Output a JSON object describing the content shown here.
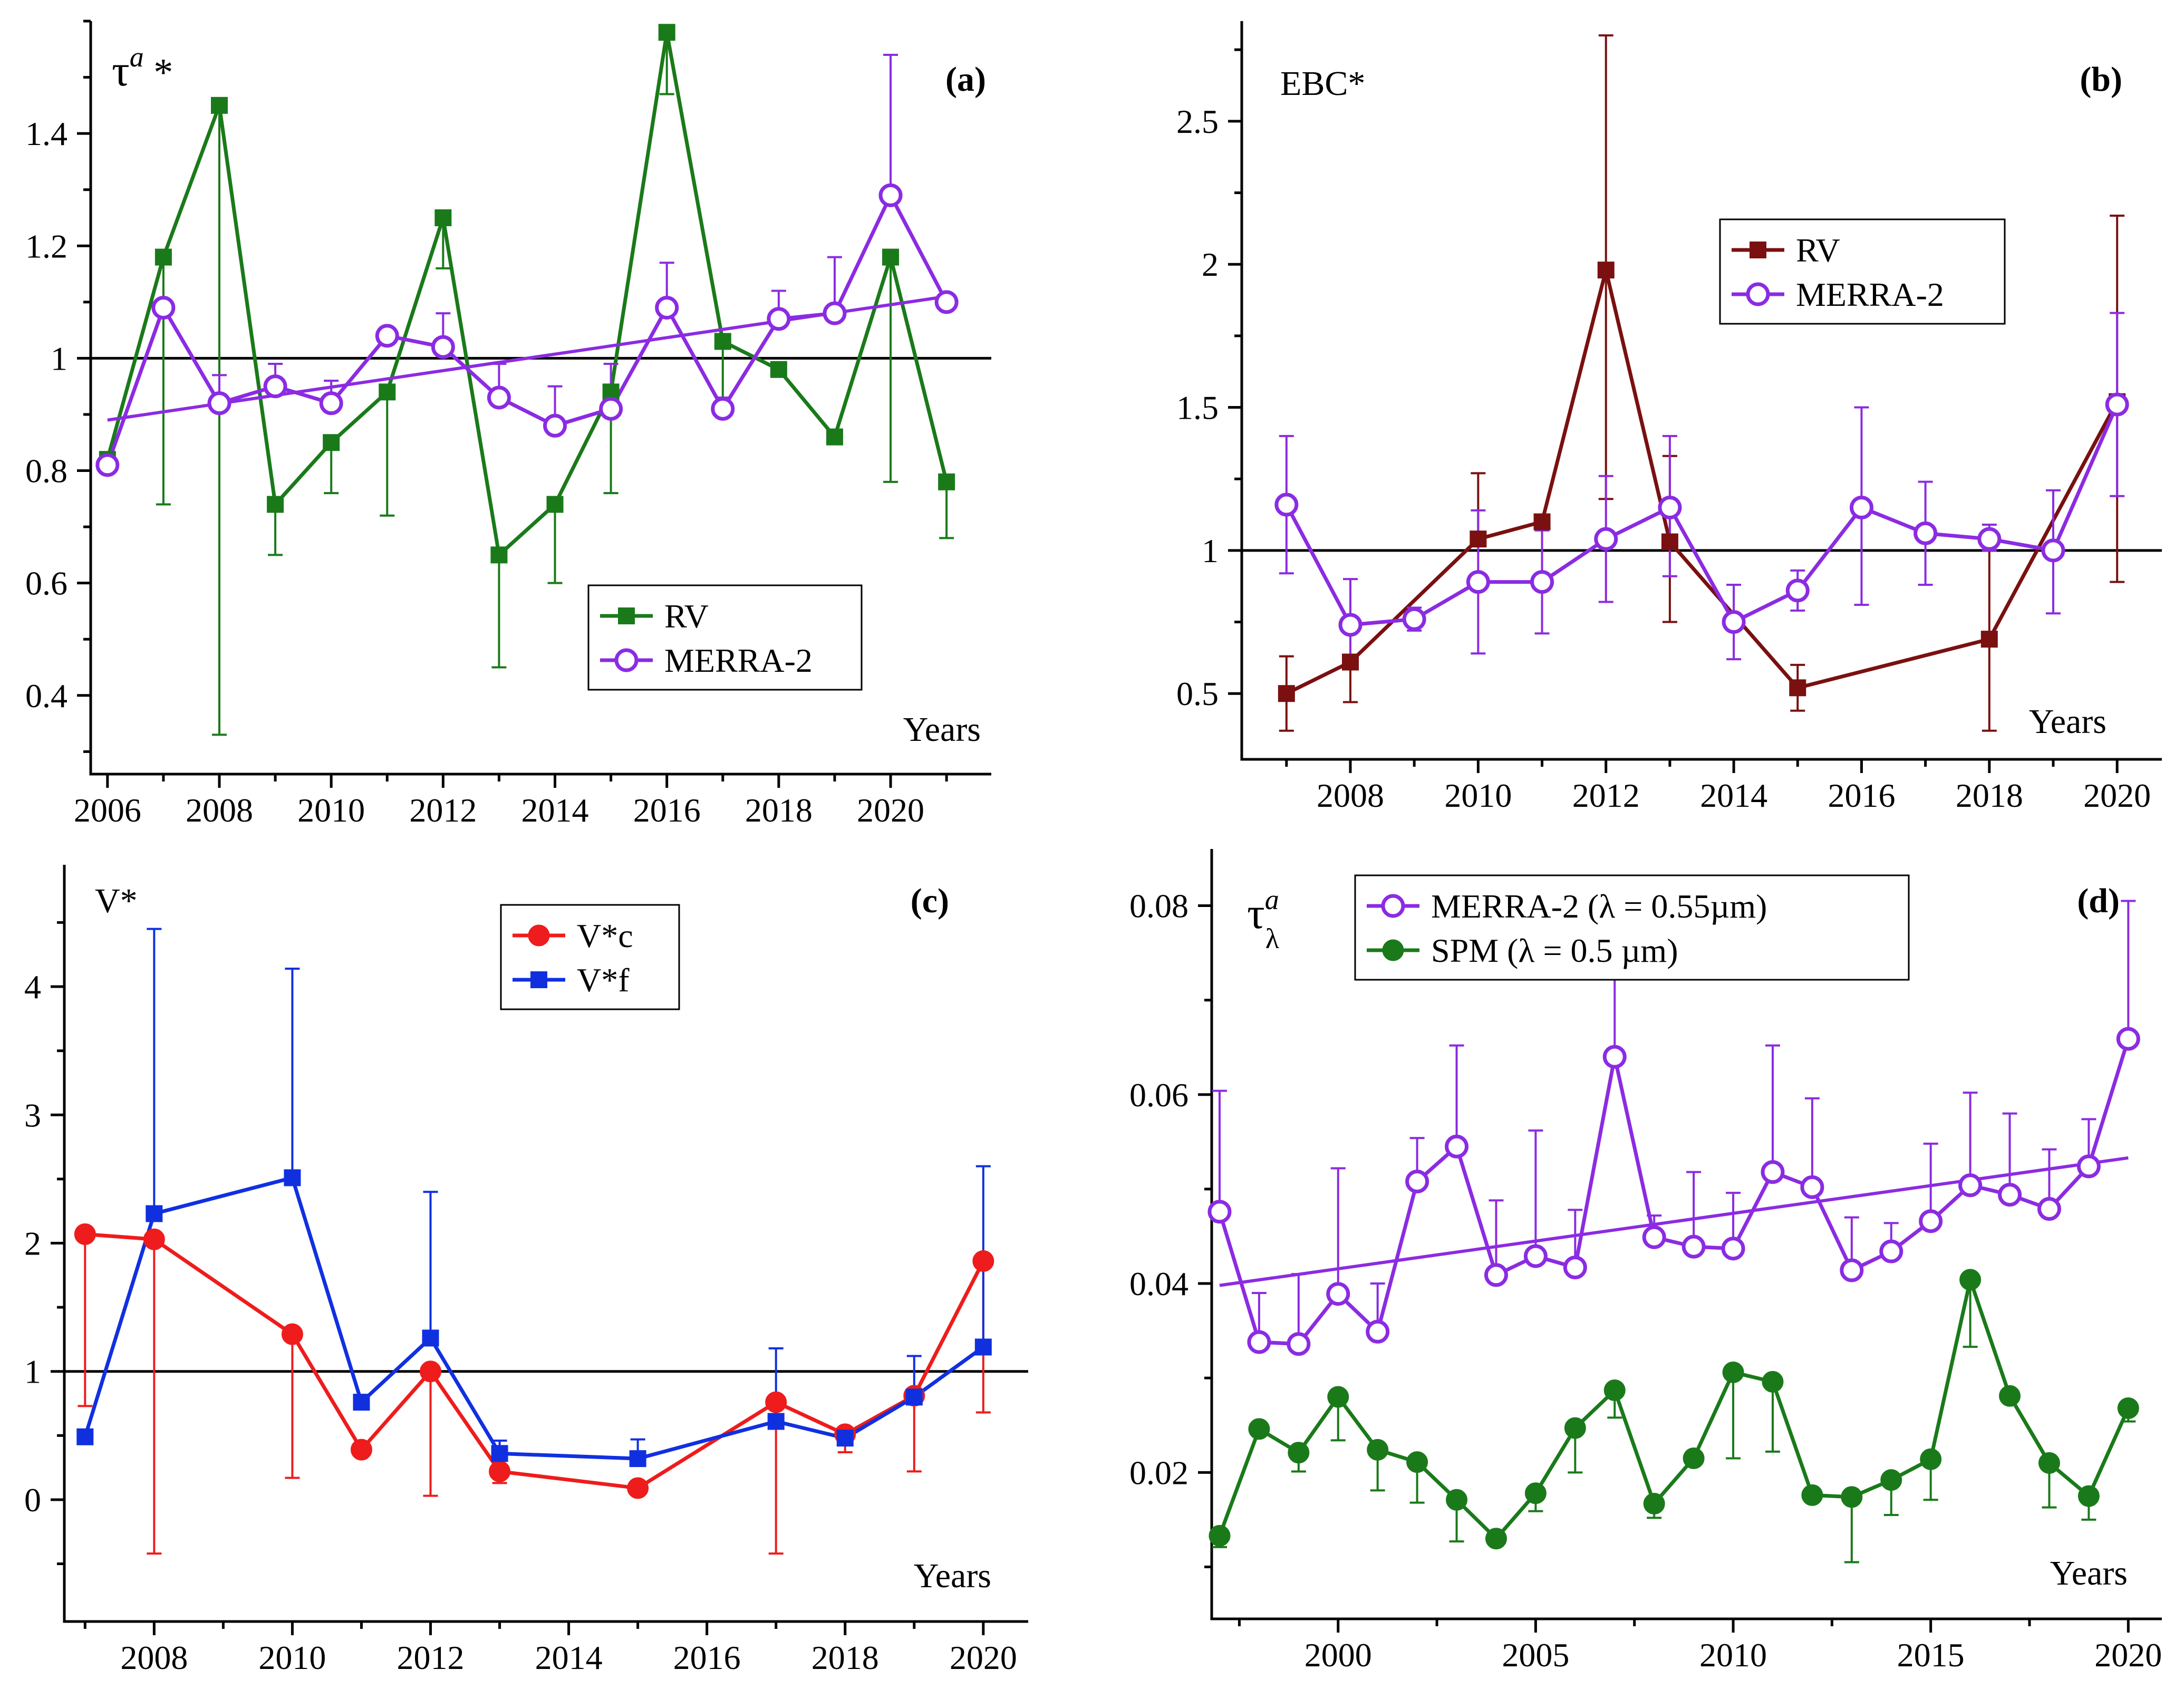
{
  "xlabel": "Years",
  "chart_data": [
    {
      "id": "a",
      "type": "line",
      "panel_label": "(a)",
      "ylabel_text": "τ",
      "ylabel_sup": "a",
      "ylabel_suffix": " *",
      "xlim": [
        2005.7,
        2021.8
      ],
      "ylim": [
        0.26,
        1.6
      ],
      "xticks": [
        2006,
        2008,
        2010,
        2012,
        2014,
        2016,
        2018,
        2020
      ],
      "yticks": [
        0.4,
        0.6,
        0.8,
        1.0,
        1.2,
        1.4
      ],
      "ref_line": 1.0,
      "legend": {
        "position": "bottom-center",
        "entries": [
          "RV",
          "MERRA-2"
        ]
      },
      "series": [
        {
          "name": "RV",
          "color": "#1a7a1a",
          "marker": "square",
          "x": [
            2006,
            2007,
            2008,
            2009,
            2010,
            2011,
            2012,
            2013,
            2014,
            2015,
            2016,
            2017,
            2018,
            2019,
            2020,
            2021
          ],
          "y": [
            0.82,
            1.18,
            1.45,
            0.74,
            0.85,
            0.94,
            1.25,
            0.65,
            0.74,
            0.94,
            1.58,
            1.03,
            0.98,
            0.86,
            1.18,
            0.78
          ],
          "err_low": [
            0.82,
            0.74,
            0.33,
            0.65,
            0.76,
            0.72,
            1.16,
            0.45,
            0.6,
            0.76,
            1.47,
            0.93,
            0.98,
            0.86,
            0.78,
            0.68
          ],
          "err_high": [
            0.82,
            1.18,
            1.45,
            0.74,
            0.85,
            0.94,
            1.25,
            0.65,
            0.74,
            0.94,
            1.58,
            1.03,
            0.98,
            0.86,
            1.18,
            0.78
          ]
        },
        {
          "name": "MERRA-2",
          "color": "#8b2be2",
          "marker": "circle",
          "x": [
            2006,
            2007,
            2008,
            2009,
            2010,
            2011,
            2012,
            2013,
            2014,
            2015,
            2016,
            2017,
            2018,
            2019,
            2020,
            2021
          ],
          "y": [
            0.81,
            1.09,
            0.92,
            0.95,
            0.92,
            1.04,
            1.02,
            0.93,
            0.88,
            0.91,
            1.09,
            0.91,
            1.07,
            1.08,
            1.29,
            1.1
          ],
          "err_low": [
            0.81,
            1.09,
            0.92,
            0.95,
            0.92,
            1.04,
            1.02,
            0.93,
            0.88,
            0.91,
            1.09,
            0.91,
            1.07,
            1.08,
            1.29,
            1.1
          ],
          "err_high": [
            0.81,
            1.09,
            0.97,
            0.99,
            0.96,
            1.04,
            1.08,
            0.99,
            0.95,
            0.99,
            1.17,
            0.93,
            1.12,
            1.18,
            1.54,
            1.1
          ]
        }
      ],
      "trend": {
        "series": "MERRA-2",
        "x": [
          2006,
          2021
        ],
        "y": [
          0.89,
          1.11
        ]
      }
    },
    {
      "id": "b",
      "type": "line",
      "panel_label": "(b)",
      "ylabel_text": "EBC*",
      "xlim": [
        2006.3,
        2020.7
      ],
      "ylim": [
        0.27,
        2.85
      ],
      "xticks": [
        2008,
        2010,
        2012,
        2014,
        2016,
        2018,
        2020
      ],
      "yticks": [
        0.5,
        1.0,
        1.5,
        2.0,
        2.5
      ],
      "ref_line": 1.0,
      "legend": {
        "position": "top-center",
        "entries": [
          "RV",
          "MERRA-2"
        ]
      },
      "series": [
        {
          "name": "RV",
          "color": "#7a1010",
          "marker": "square",
          "x": [
            2007,
            2008,
            2010,
            2011,
            2012,
            2013,
            2015,
            2018,
            2020
          ],
          "y": [
            0.5,
            0.61,
            1.04,
            1.1,
            1.98,
            1.03,
            0.52,
            0.69,
            1.52
          ],
          "err_low": [
            0.37,
            0.47,
            1.04,
            1.1,
            1.18,
            0.75,
            0.44,
            0.37,
            0.89
          ],
          "err_high": [
            0.63,
            0.61,
            1.27,
            1.1,
            2.8,
            1.33,
            0.6,
            1.01,
            2.17
          ]
        },
        {
          "name": "MERRA-2",
          "color": "#8b2be2",
          "marker": "circle",
          "x": [
            2007,
            2008,
            2009,
            2010,
            2011,
            2012,
            2013,
            2014,
            2015,
            2016,
            2017,
            2018,
            2019,
            2020
          ],
          "y": [
            1.16,
            0.74,
            0.76,
            0.89,
            0.89,
            1.04,
            1.15,
            0.75,
            0.86,
            1.15,
            1.06,
            1.04,
            1.0,
            1.51
          ],
          "err_low": [
            0.92,
            0.61,
            0.72,
            0.64,
            0.71,
            0.82,
            0.91,
            0.62,
            0.79,
            0.81,
            0.88,
            1.0,
            0.78,
            1.19
          ],
          "err_high": [
            1.4,
            0.9,
            0.8,
            1.14,
            1.07,
            1.26,
            1.4,
            0.88,
            0.93,
            1.5,
            1.24,
            1.09,
            1.21,
            1.83
          ]
        }
      ]
    },
    {
      "id": "c",
      "type": "line",
      "panel_label": "(c)",
      "ylabel_text": "V*",
      "xlim": [
        2006.7,
        2020.65
      ],
      "ylim": [
        -0.95,
        4.95
      ],
      "xticks": [
        2008,
        2010,
        2012,
        2014,
        2016,
        2018,
        2020
      ],
      "yticks": [
        0,
        1,
        2,
        3,
        4
      ],
      "ref_line": 1,
      "legend": {
        "position": "top-center",
        "entries": [
          "V*c",
          "V*f"
        ]
      },
      "series": [
        {
          "name": "V*c",
          "color": "#ee1c1c",
          "marker": "circle-filled",
          "x": [
            2007,
            2008,
            2010,
            2011,
            2012,
            2013,
            2015,
            2017,
            2018,
            2019,
            2020
          ],
          "y": [
            2.07,
            2.03,
            1.29,
            0.39,
            1.0,
            0.22,
            0.09,
            0.76,
            0.51,
            0.81,
            1.86
          ],
          "err_low": [
            0.73,
            -0.42,
            0.17,
            0.39,
            0.03,
            0.13,
            0.09,
            -0.42,
            0.37,
            0.22,
            0.68
          ],
          "err_high": [
            2.07,
            2.03,
            1.29,
            0.39,
            1.0,
            0.22,
            0.09,
            0.76,
            0.51,
            0.81,
            1.86
          ]
        },
        {
          "name": "V*f",
          "color": "#1030e0",
          "marker": "square",
          "x": [
            2007,
            2008,
            2010,
            2011,
            2012,
            2013,
            2015,
            2017,
            2018,
            2019,
            2020
          ],
          "y": [
            0.49,
            2.23,
            2.51,
            0.76,
            1.26,
            0.36,
            0.32,
            0.61,
            0.48,
            0.8,
            1.19
          ],
          "err_low": [
            0.49,
            2.23,
            2.51,
            0.76,
            1.26,
            0.36,
            0.32,
            0.61,
            0.48,
            0.8,
            1.19
          ],
          "err_high": [
            0.49,
            4.45,
            4.14,
            0.76,
            2.4,
            0.46,
            0.47,
            1.18,
            0.48,
            1.12,
            2.6
          ]
        }
      ]
    },
    {
      "id": "d",
      "type": "line",
      "panel_label": "(d)",
      "ylabel_text": "τ",
      "ylabel_sup": "a",
      "ylabel_sub": "λ",
      "xlim": [
        1996.8,
        2020.85
      ],
      "ylim": [
        0.0045,
        0.086
      ],
      "xticks": [
        2000,
        2005,
        2010,
        2015,
        2020
      ],
      "xticklabels": [
        "2000",
        "2005",
        "2010",
        "2015",
        "2020"
      ],
      "yticks": [
        0.02,
        0.04,
        0.06,
        0.08
      ],
      "yticklabels": [
        "0.02",
        "0.04",
        "0.06",
        "0.08"
      ],
      "legend": {
        "position": "top-center",
        "entries": [
          "MERRA-2 (λ = 0.55µm)",
          "SPM (λ = 0.5 µm)"
        ]
      },
      "series": [
        {
          "name": "MERRA-2 (λ = 0.55µm)",
          "color": "#8b2be2",
          "marker": "circle",
          "x": [
            1997,
            1998,
            1999,
            2000,
            2001,
            2002,
            2003,
            2004,
            2005,
            2006,
            2007,
            2008,
            2009,
            2010,
            2011,
            2012,
            2013,
            2014,
            2015,
            2016,
            2017,
            2018,
            2019,
            2020
          ],
          "y": [
            0.0476,
            0.0338,
            0.0336,
            0.0389,
            0.0349,
            0.0508,
            0.0545,
            0.0409,
            0.0429,
            0.0417,
            0.064,
            0.0449,
            0.0439,
            0.0437,
            0.0518,
            0.0502,
            0.0414,
            0.0434,
            0.0466,
            0.0504,
            0.0494,
            0.0479,
            0.0524,
            0.0659
          ],
          "err_low": [
            0.0476,
            0.0338,
            0.0336,
            0.0389,
            0.0349,
            0.0508,
            0.0545,
            0.0409,
            0.0429,
            0.0417,
            0.064,
            0.0449,
            0.0439,
            0.0437,
            0.0518,
            0.0502,
            0.0414,
            0.0434,
            0.0466,
            0.0504,
            0.0494,
            0.0479,
            0.0524,
            0.0659
          ],
          "err_high": [
            0.0604,
            0.039,
            0.041,
            0.0522,
            0.04,
            0.0554,
            0.0652,
            0.0488,
            0.0562,
            0.0478,
            0.0724,
            0.0472,
            0.0518,
            0.0496,
            0.0652,
            0.0596,
            0.047,
            0.0464,
            0.0548,
            0.0602,
            0.058,
            0.0542,
            0.0574,
            0.0805
          ]
        },
        {
          "name": "SPM (λ = 0.5 µm)",
          "color": "#1a7a1a",
          "marker": "circle-filled",
          "x": [
            1997,
            1998,
            1999,
            2000,
            2001,
            2002,
            2003,
            2004,
            2005,
            2006,
            2007,
            2008,
            2009,
            2010,
            2011,
            2012,
            2013,
            2014,
            2015,
            2016,
            2017,
            2018,
            2019,
            2020
          ],
          "y": [
            0.0133,
            0.0246,
            0.0221,
            0.028,
            0.0224,
            0.0211,
            0.0171,
            0.013,
            0.0178,
            0.0247,
            0.0287,
            0.0167,
            0.0215,
            0.0306,
            0.0296,
            0.0176,
            0.0174,
            0.0192,
            0.0214,
            0.0404,
            0.0281,
            0.021,
            0.0175,
            0.0268
          ],
          "err_low": [
            0.0121,
            0.0246,
            0.0201,
            0.0234,
            0.0181,
            0.0168,
            0.0127,
            0.0123,
            0.0159,
            0.02,
            0.0258,
            0.0152,
            0.0215,
            0.0215,
            0.0222,
            0.0176,
            0.0105,
            0.0155,
            0.0171,
            0.0333,
            0.0281,
            0.0163,
            0.015,
            0.0254
          ],
          "err_high": [
            0.0133,
            0.0246,
            0.0221,
            0.028,
            0.0224,
            0.0211,
            0.0171,
            0.013,
            0.0178,
            0.0247,
            0.0287,
            0.0167,
            0.0215,
            0.0306,
            0.0296,
            0.0176,
            0.0174,
            0.0192,
            0.0214,
            0.0404,
            0.0281,
            0.021,
            0.0175,
            0.0268
          ]
        }
      ],
      "trend": {
        "series": "MERRA-2 (λ = 0.55µm)",
        "x": [
          1997,
          2020
        ],
        "y": [
          0.0398,
          0.0533
        ]
      }
    }
  ]
}
